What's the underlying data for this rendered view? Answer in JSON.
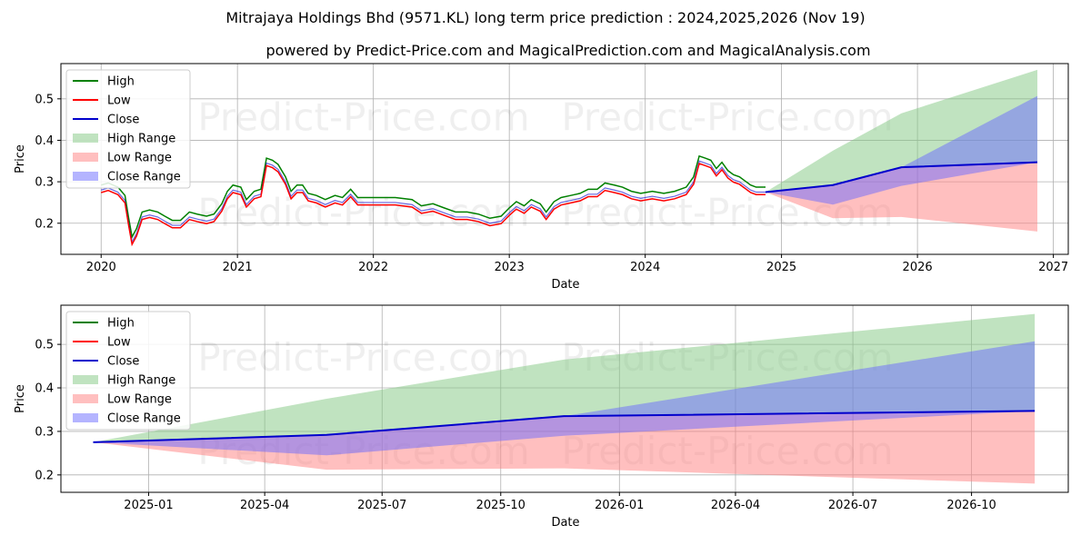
{
  "title": "Mitrajaya Holdings Bhd (9571.KL) long term price prediction : 2024,2025,2026 (Nov 19)",
  "subtitle": "powered by Predict-Price.com and MagicalPrediction.com and MagicalAnalysis.com",
  "watermark": "Predict-Price.com",
  "colors": {
    "high": "#008000",
    "low": "#ff0000",
    "close": "#0000cc",
    "high_range": "#82c882",
    "low_range": "#ff8080",
    "close_range": "#6a6aff"
  },
  "legend": [
    "High",
    "Low",
    "Close",
    "High Range",
    "Low Range",
    "Close Range"
  ],
  "chart_data": [
    {
      "type": "line",
      "xlabel": "Date",
      "ylabel": "Price",
      "xlim": [
        "2019-09-15",
        "2027-02-10"
      ],
      "ylim": [
        0.125,
        0.585
      ],
      "x_ticks": [
        "2020",
        "2021",
        "2022",
        "2023",
        "2024",
        "2025",
        "2026",
        "2027"
      ],
      "y_ticks": [
        0.2,
        0.3,
        0.4,
        0.5
      ],
      "grid": true,
      "legend_position": "upper-left",
      "history_close": [
        [
          "2020-01-01",
          0.28
        ],
        [
          "2020-01-20",
          0.285
        ],
        [
          "2020-02-15",
          0.275
        ],
        [
          "2020-03-05",
          0.255
        ],
        [
          "2020-03-15",
          0.2
        ],
        [
          "2020-03-24",
          0.155
        ],
        [
          "2020-04-05",
          0.175
        ],
        [
          "2020-04-20",
          0.215
        ],
        [
          "2020-05-10",
          0.22
        ],
        [
          "2020-06-01",
          0.215
        ],
        [
          "2020-06-20",
          0.205
        ],
        [
          "2020-07-10",
          0.195
        ],
        [
          "2020-08-01",
          0.195
        ],
        [
          "2020-08-25",
          0.215
        ],
        [
          "2020-09-15",
          0.21
        ],
        [
          "2020-10-10",
          0.205
        ],
        [
          "2020-10-30",
          0.21
        ],
        [
          "2020-11-20",
          0.235
        ],
        [
          "2020-12-05",
          0.265
        ],
        [
          "2020-12-20",
          0.28
        ],
        [
          "2021-01-10",
          0.275
        ],
        [
          "2021-01-25",
          0.245
        ],
        [
          "2021-02-15",
          0.265
        ],
        [
          "2021-03-05",
          0.27
        ],
        [
          "2021-03-20",
          0.345
        ],
        [
          "2021-04-05",
          0.34
        ],
        [
          "2021-04-20",
          0.33
        ],
        [
          "2021-05-10",
          0.3
        ],
        [
          "2021-05-25",
          0.265
        ],
        [
          "2021-06-10",
          0.28
        ],
        [
          "2021-06-25",
          0.28
        ],
        [
          "2021-07-10",
          0.26
        ],
        [
          "2021-08-01",
          0.255
        ],
        [
          "2021-08-25",
          0.245
        ],
        [
          "2021-09-20",
          0.255
        ],
        [
          "2021-10-10",
          0.25
        ],
        [
          "2021-11-01",
          0.27
        ],
        [
          "2021-11-20",
          0.25
        ],
        [
          "2022-01-01",
          0.25
        ],
        [
          "2022-03-01",
          0.25
        ],
        [
          "2022-04-15",
          0.245
        ],
        [
          "2022-05-10",
          0.23
        ],
        [
          "2022-06-10",
          0.235
        ],
        [
          "2022-07-10",
          0.225
        ],
        [
          "2022-08-10",
          0.215
        ],
        [
          "2022-09-10",
          0.215
        ],
        [
          "2022-10-10",
          0.21
        ],
        [
          "2022-11-10",
          0.2
        ],
        [
          "2022-12-10",
          0.205
        ],
        [
          "2023-01-01",
          0.225
        ],
        [
          "2023-01-20",
          0.24
        ],
        [
          "2023-02-10",
          0.23
        ],
        [
          "2023-03-01",
          0.245
        ],
        [
          "2023-03-25",
          0.235
        ],
        [
          "2023-04-10",
          0.215
        ],
        [
          "2023-05-01",
          0.24
        ],
        [
          "2023-05-20",
          0.25
        ],
        [
          "2023-06-15",
          0.255
        ],
        [
          "2023-07-10",
          0.26
        ],
        [
          "2023-08-01",
          0.27
        ],
        [
          "2023-08-25",
          0.27
        ],
        [
          "2023-09-15",
          0.285
        ],
        [
          "2023-10-10",
          0.28
        ],
        [
          "2023-11-01",
          0.275
        ],
        [
          "2023-11-25",
          0.265
        ],
        [
          "2023-12-20",
          0.26
        ],
        [
          "2024-01-20",
          0.265
        ],
        [
          "2024-02-20",
          0.26
        ],
        [
          "2024-03-20",
          0.265
        ],
        [
          "2024-04-20",
          0.275
        ],
        [
          "2024-05-10",
          0.3
        ],
        [
          "2024-05-25",
          0.35
        ],
        [
          "2024-06-10",
          0.345
        ],
        [
          "2024-06-25",
          0.34
        ],
        [
          "2024-07-10",
          0.32
        ],
        [
          "2024-07-25",
          0.335
        ],
        [
          "2024-08-10",
          0.315
        ],
        [
          "2024-08-25",
          0.305
        ],
        [
          "2024-09-10",
          0.3
        ],
        [
          "2024-09-25",
          0.29
        ],
        [
          "2024-10-10",
          0.28
        ],
        [
          "2024-10-25",
          0.275
        ],
        [
          "2024-11-19",
          0.275
        ]
      ],
      "history_band": 0.012,
      "forecast": {
        "x": [
          "2024-11-19",
          "2025-05-19",
          "2025-11-19",
          "2026-11-19"
        ],
        "close": [
          0.275,
          0.292,
          0.335,
          0.347
        ],
        "high_range": {
          "lower": [
            0.275,
            0.292,
            0.335,
            0.347
          ],
          "upper": [
            0.275,
            0.375,
            0.465,
            0.57
          ]
        },
        "low_range": {
          "lower": [
            0.275,
            0.212,
            0.215,
            0.18
          ],
          "upper": [
            0.275,
            0.292,
            0.335,
            0.347
          ]
        },
        "close_range": {
          "lower": [
            0.275,
            0.245,
            0.29,
            0.347
          ],
          "upper": [
            0.275,
            0.292,
            0.335,
            0.507
          ]
        }
      }
    },
    {
      "type": "line",
      "xlabel": "Date",
      "ylabel": "Price",
      "xlim": [
        "2024-10-25",
        "2026-12-15"
      ],
      "ylim": [
        0.16,
        0.59
      ],
      "x_ticks": [
        "2025-01",
        "2025-04",
        "2025-07",
        "2025-10",
        "2026-01",
        "2026-04",
        "2026-07",
        "2026-10"
      ],
      "y_ticks": [
        0.2,
        0.3,
        0.4,
        0.5
      ],
      "grid": true,
      "legend_position": "upper-left",
      "forecast": {
        "x": [
          "2024-11-19",
          "2025-05-19",
          "2025-11-19",
          "2026-11-19"
        ],
        "close": [
          0.275,
          0.292,
          0.335,
          0.347
        ],
        "high_range": {
          "lower": [
            0.275,
            0.292,
            0.335,
            0.347
          ],
          "upper": [
            0.275,
            0.375,
            0.465,
            0.57
          ]
        },
        "low_range": {
          "lower": [
            0.275,
            0.212,
            0.215,
            0.18
          ],
          "upper": [
            0.275,
            0.292,
            0.335,
            0.347
          ]
        },
        "close_range": {
          "lower": [
            0.275,
            0.245,
            0.29,
            0.347
          ],
          "upper": [
            0.275,
            0.292,
            0.335,
            0.507
          ]
        }
      }
    }
  ]
}
